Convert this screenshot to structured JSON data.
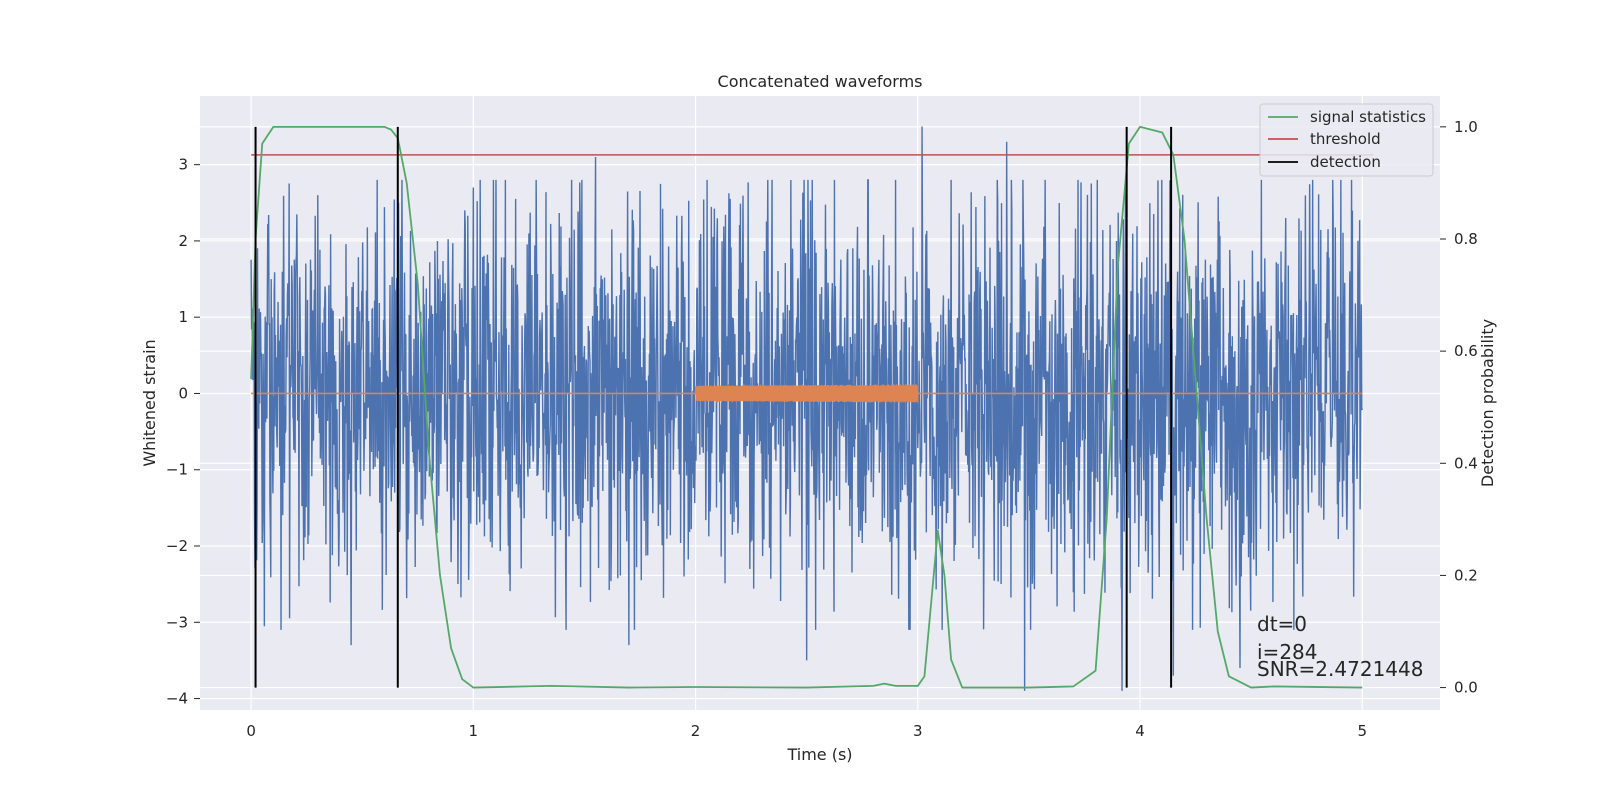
{
  "chart_data": {
    "type": "line",
    "title": "Concatenated waveforms",
    "xlabel": "Time (s)",
    "ylabel_left": "Whitened strain",
    "ylabel_right": "Detection probability",
    "xlim": [
      -0.23,
      5.35
    ],
    "ylim_left": [
      -4.15,
      3.9
    ],
    "ylim_right": [
      -0.04,
      1.055
    ],
    "xticks": [
      0,
      1,
      2,
      3,
      4,
      5
    ],
    "yticks_left": [
      -4,
      -3,
      -2,
      -1,
      0,
      1,
      2,
      3
    ],
    "yticks_right": [
      0.0,
      0.2,
      0.4,
      0.6,
      0.8,
      1.0
    ],
    "grid": true,
    "legend_position": "top-right",
    "colors": {
      "background": "#EAEAF2",
      "grid": "#FFFFFF",
      "strain": "#4C72B0",
      "template": "#DD8452",
      "statistic": "#55A868",
      "threshold": "#C44E52",
      "detection": "#000000"
    },
    "series": [
      {
        "name": "",
        "axis": "left",
        "kind": "noise",
        "x_range": [
          0,
          5
        ],
        "typical_amplitude": 2.0,
        "envelope_points": [
          [
            0.3,
            2.6
          ],
          [
            0.45,
            -3.3
          ],
          [
            1.0,
            2.7
          ],
          [
            1.55,
            3.1
          ],
          [
            1.7,
            -3.3
          ],
          [
            2.5,
            -3.5
          ],
          [
            3.02,
            3.5
          ],
          [
            3.4,
            3.3
          ],
          [
            3.48,
            -3.9
          ],
          [
            3.92,
            -3.9
          ],
          [
            4.15,
            -3.7
          ],
          [
            4.45,
            -3.6
          ]
        ]
      },
      {
        "name": "",
        "axis": "left",
        "kind": "template",
        "x": [
          0,
          2,
          2.5,
          3,
          5
        ],
        "y": [
          0,
          0.1,
          0.1,
          0.12,
          0
        ]
      },
      {
        "name": "signal statistics",
        "axis": "right",
        "x": [
          0.0,
          0.02,
          0.05,
          0.1,
          0.2,
          0.4,
          0.6,
          0.63,
          0.66,
          0.7,
          0.75,
          0.8,
          0.85,
          0.9,
          0.95,
          1.0,
          1.35,
          1.7,
          2.0,
          2.5,
          2.8,
          2.85,
          2.9,
          3.0,
          3.03,
          3.06,
          3.09,
          3.12,
          3.15,
          3.2,
          3.5,
          3.7,
          3.8,
          3.85,
          3.9,
          3.95,
          4.0,
          4.1,
          4.15,
          4.2,
          4.25,
          4.3,
          4.35,
          4.4,
          4.5,
          4.6,
          5.0
        ],
        "y": [
          0.55,
          0.8,
          0.97,
          1.0,
          1.0,
          1.0,
          1.0,
          0.995,
          0.98,
          0.9,
          0.72,
          0.42,
          0.2,
          0.07,
          0.015,
          0.0,
          0.003,
          0.0,
          0.001,
          0.0,
          0.003,
          0.007,
          0.003,
          0.003,
          0.02,
          0.15,
          0.28,
          0.2,
          0.05,
          0.0,
          0.0,
          0.002,
          0.03,
          0.3,
          0.75,
          0.97,
          1.0,
          0.99,
          0.95,
          0.8,
          0.55,
          0.3,
          0.1,
          0.02,
          0.0,
          0.002,
          0.0
        ]
      },
      {
        "name": "threshold",
        "axis": "right",
        "x": [
          0,
          5.05
        ],
        "y": [
          0.95,
          0.95
        ]
      }
    ],
    "detections": {
      "name": "detection",
      "x": [
        0.02,
        0.66,
        3.94,
        4.14
      ]
    },
    "annotations": [
      "dt=0",
      "i=284",
      "SNR=2.4721448"
    ],
    "legend": [
      "signal statistics",
      "threshold",
      "detection"
    ]
  }
}
